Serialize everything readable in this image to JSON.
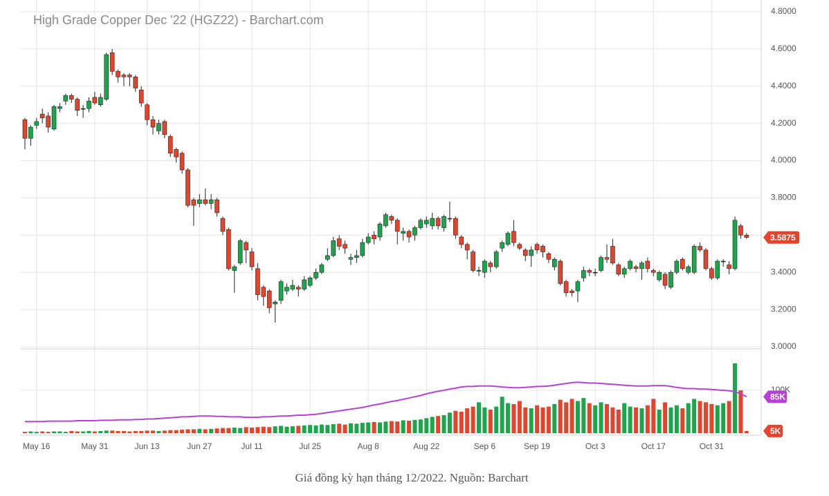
{
  "chart_data": [
    {
      "type": "candlestick",
      "title": "High Grade Copper Dec '22 (HGZ22) - Barchart.com",
      "categories": [
        null,
        null,
        "May 16",
        null,
        null,
        null,
        null,
        null,
        null,
        null,
        null,
        null,
        "May 31",
        null,
        null,
        null,
        null,
        null,
        null,
        null,
        null,
        "Jun 13",
        null,
        null,
        null,
        null,
        null,
        null,
        null,
        null,
        "Jun 27",
        null,
        null,
        null,
        null,
        null,
        null,
        null,
        null,
        "Jul 11",
        null,
        null,
        null,
        null,
        null,
        null,
        null,
        null,
        null,
        "Jul 25",
        null,
        null,
        null,
        null,
        null,
        null,
        null,
        null,
        null,
        "Aug 8",
        null,
        null,
        null,
        null,
        null,
        null,
        null,
        null,
        null,
        "Aug 22",
        null,
        null,
        null,
        null,
        null,
        null,
        null,
        null,
        null,
        "Sep 6",
        null,
        null,
        null,
        null,
        null,
        null,
        null,
        null,
        "Sep 19",
        null,
        null,
        null,
        null,
        null,
        null,
        null,
        null,
        null,
        "Oct 3",
        null,
        null,
        null,
        null,
        null,
        null,
        null,
        null,
        null,
        "Oct 17",
        null,
        null,
        null,
        null,
        null,
        null,
        null,
        null,
        null,
        "Oct 31",
        null,
        null,
        null,
        null,
        null,
        null
      ],
      "open": [
        4.22,
        4.12,
        4.19,
        4.25,
        4.24,
        4.17,
        4.28,
        4.32,
        4.35,
        4.33,
        4.28,
        4.28,
        4.34,
        4.3,
        4.33,
        4.58,
        4.48,
        4.46,
        4.46,
        4.45,
        4.38,
        4.3,
        4.22,
        4.16,
        4.21,
        4.13,
        4.06,
        4.04,
        3.95,
        3.79,
        3.77,
        3.79,
        3.77,
        3.79,
        3.69,
        3.63,
        3.41,
        3.45,
        3.56,
        3.51,
        3.42,
        3.32,
        3.3,
        3.23,
        3.25,
        3.3,
        3.31,
        3.32,
        3.31,
        3.33,
        3.37,
        3.4,
        3.47,
        3.49,
        3.58,
        3.55,
        3.47,
        3.48,
        3.49,
        3.56,
        3.6,
        3.59,
        3.65,
        3.7,
        3.68,
        3.61,
        3.62,
        3.6,
        3.64,
        3.66,
        3.65,
        3.69,
        3.64,
        3.69,
        3.69,
        3.59,
        3.55,
        3.51,
        3.41,
        3.4,
        3.45,
        3.43,
        3.53,
        3.55,
        3.62,
        3.55,
        3.52,
        3.49,
        3.55,
        3.54,
        3.5,
        3.43,
        3.46,
        3.35,
        3.3,
        3.3,
        3.37,
        3.41,
        3.4,
        3.41,
        3.48,
        3.54,
        3.44,
        3.39,
        3.42,
        3.43,
        3.42,
        3.46,
        3.41,
        3.36,
        3.39,
        3.32,
        3.4,
        3.47,
        3.4,
        3.4,
        3.54,
        3.52,
        3.42,
        3.37,
        3.46,
        3.44,
        3.42,
        3.65,
        3.6
      ],
      "high": [
        4.23,
        4.19,
        4.23,
        4.28,
        4.26,
        4.3,
        4.31,
        4.36,
        4.36,
        4.34,
        4.3,
        4.34,
        4.37,
        4.36,
        4.58,
        4.6,
        4.49,
        4.47,
        4.47,
        4.46,
        4.4,
        4.31,
        4.24,
        4.22,
        4.22,
        4.14,
        4.07,
        4.05,
        3.96,
        3.8,
        3.82,
        3.85,
        3.82,
        3.8,
        3.7,
        3.64,
        3.44,
        3.58,
        3.57,
        3.53,
        3.45,
        3.33,
        3.31,
        3.25,
        3.36,
        3.34,
        3.36,
        3.33,
        3.38,
        3.38,
        3.42,
        3.45,
        3.53,
        3.59,
        3.6,
        3.57,
        3.5,
        3.52,
        3.58,
        3.61,
        3.62,
        3.67,
        3.72,
        3.71,
        3.69,
        3.64,
        3.63,
        3.65,
        3.69,
        3.7,
        3.72,
        3.7,
        3.71,
        3.78,
        3.7,
        3.6,
        3.56,
        3.52,
        3.43,
        3.47,
        3.46,
        3.52,
        3.57,
        3.62,
        3.68,
        3.56,
        3.53,
        3.54,
        3.56,
        3.55,
        3.51,
        3.48,
        3.47,
        3.36,
        3.31,
        3.36,
        3.43,
        3.42,
        3.42,
        3.49,
        3.55,
        3.58,
        3.45,
        3.43,
        3.47,
        3.44,
        3.46,
        3.48,
        3.42,
        3.41,
        3.4,
        3.41,
        3.47,
        3.48,
        3.44,
        3.55,
        3.56,
        3.53,
        3.43,
        3.47,
        3.47,
        3.46,
        3.7,
        3.66,
        3.61
      ],
      "low": [
        4.06,
        4.08,
        4.17,
        4.2,
        4.15,
        4.16,
        4.26,
        4.3,
        4.31,
        4.24,
        4.23,
        4.26,
        4.3,
        4.29,
        4.32,
        4.46,
        4.42,
        4.4,
        4.4,
        4.37,
        4.29,
        4.19,
        4.14,
        4.14,
        4.12,
        4.02,
        3.99,
        3.93,
        3.75,
        3.65,
        3.75,
        3.76,
        3.74,
        3.7,
        3.6,
        3.41,
        3.29,
        3.44,
        3.45,
        3.41,
        3.25,
        3.22,
        3.18,
        3.13,
        3.23,
        3.28,
        3.3,
        3.27,
        3.3,
        3.32,
        3.36,
        3.39,
        3.46,
        3.48,
        3.52,
        3.5,
        3.44,
        3.45,
        3.48,
        3.55,
        3.55,
        3.57,
        3.64,
        3.66,
        3.55,
        3.57,
        3.56,
        3.57,
        3.63,
        3.64,
        3.63,
        3.63,
        3.62,
        3.67,
        3.58,
        3.53,
        3.47,
        3.4,
        3.38,
        3.37,
        3.4,
        3.42,
        3.51,
        3.54,
        3.54,
        3.52,
        3.46,
        3.43,
        3.5,
        3.48,
        3.45,
        3.41,
        3.33,
        3.27,
        3.27,
        3.24,
        3.35,
        3.38,
        3.38,
        3.4,
        3.45,
        3.44,
        3.38,
        3.37,
        3.41,
        3.4,
        3.36,
        3.4,
        3.38,
        3.35,
        3.31,
        3.31,
        3.39,
        3.41,
        3.39,
        3.39,
        3.51,
        3.41,
        3.36,
        3.36,
        3.43,
        3.39,
        3.41,
        3.58,
        3.58
      ],
      "close": [
        4.12,
        4.18,
        4.21,
        4.23,
        4.18,
        4.29,
        4.29,
        4.35,
        4.33,
        4.27,
        4.28,
        4.32,
        4.31,
        4.34,
        4.57,
        4.48,
        4.45,
        4.45,
        4.45,
        4.39,
        4.31,
        4.22,
        4.18,
        4.2,
        4.14,
        4.04,
        4.02,
        3.95,
        3.76,
        3.76,
        3.79,
        3.77,
        3.79,
        3.72,
        3.62,
        3.42,
        3.43,
        3.57,
        3.52,
        3.43,
        3.28,
        3.27,
        3.21,
        3.24,
        3.35,
        3.32,
        3.33,
        3.31,
        3.36,
        3.37,
        3.4,
        3.44,
        3.49,
        3.57,
        3.54,
        3.53,
        3.48,
        3.49,
        3.56,
        3.59,
        3.58,
        3.66,
        3.71,
        3.68,
        3.62,
        3.62,
        3.59,
        3.64,
        3.68,
        3.68,
        3.69,
        3.65,
        3.7,
        3.69,
        3.6,
        3.55,
        3.52,
        3.41,
        3.41,
        3.46,
        3.43,
        3.51,
        3.56,
        3.61,
        3.56,
        3.53,
        3.49,
        3.52,
        3.52,
        3.51,
        3.47,
        3.47,
        3.34,
        3.29,
        3.29,
        3.35,
        3.41,
        3.4,
        3.4,
        3.48,
        3.47,
        3.45,
        3.39,
        3.42,
        3.46,
        3.42,
        3.45,
        3.42,
        3.4,
        3.4,
        3.33,
        3.4,
        3.46,
        3.42,
        3.43,
        3.54,
        3.52,
        3.42,
        3.37,
        3.46,
        3.46,
        3.42,
        3.68,
        3.6,
        3.5875
      ],
      "last_label": "3.5875",
      "up_color": "#1aa64a",
      "down_color": "#e4442b",
      "badge_color": "#e4442b",
      "ylim": [
        3.0,
        4.8
      ],
      "yticks": [
        {
          "value": 3.0,
          "label": "3.0000"
        },
        {
          "value": 3.2,
          "label": "3.2000"
        },
        {
          "value": 3.4,
          "label": "3.4000"
        },
        {
          "value": 3.6,
          "label": "3.6000"
        },
        {
          "value": 3.8,
          "label": "3.8000"
        },
        {
          "value": 4.0,
          "label": "4.0000"
        },
        {
          "value": 4.2,
          "label": "4.2000"
        },
        {
          "value": 4.4,
          "label": "4.4000"
        },
        {
          "value": 4.6,
          "label": "4.6000"
        },
        {
          "value": 4.8,
          "label": "4.8000"
        }
      ],
      "grid": true
    },
    {
      "type": "bar",
      "values": [
        3,
        4,
        3,
        4,
        3,
        4,
        4,
        3,
        5,
        4,
        4,
        5,
        4,
        5,
        6,
        6,
        5,
        5,
        4,
        5,
        5,
        6,
        6,
        5,
        6,
        7,
        7,
        8,
        9,
        9,
        10,
        9,
        10,
        11,
        12,
        12,
        13,
        12,
        14,
        13,
        14,
        15,
        14,
        16,
        17,
        15,
        16,
        17,
        18,
        19,
        18,
        20,
        19,
        21,
        22,
        20,
        23,
        22,
        24,
        25,
        26,
        25,
        27,
        28,
        27,
        30,
        29,
        31,
        32,
        35,
        38,
        40,
        42,
        48,
        52,
        50,
        58,
        62,
        72,
        60,
        55,
        62,
        85,
        70,
        68,
        75,
        60,
        58,
        65,
        60,
        62,
        68,
        78,
        72,
        80,
        75,
        82,
        70,
        65,
        72,
        68,
        60,
        55,
        70,
        62,
        60,
        58,
        65,
        80,
        55,
        72,
        60,
        65,
        58,
        70,
        80,
        75,
        72,
        68,
        65,
        70,
        75,
        163,
        100,
        5
      ],
      "last_label": "5K",
      "average": {
        "color": "#b640d8",
        "last_label": "85K",
        "values": [
          27,
          27,
          27,
          27,
          28,
          28,
          28,
          28,
          28,
          29,
          29,
          29,
          29,
          30,
          30,
          30,
          31,
          31,
          31,
          32,
          32,
          33,
          33,
          34,
          35,
          36,
          37,
          38,
          38,
          39,
          40,
          40,
          40,
          39,
          39,
          38,
          38,
          38,
          37,
          37,
          37,
          38,
          38,
          39,
          40,
          40,
          41,
          42,
          42,
          43,
          44,
          46,
          48,
          50,
          52,
          54,
          56,
          58,
          60,
          63,
          66,
          68,
          71,
          74,
          76,
          79,
          82,
          85,
          88,
          92,
          95,
          98,
          100,
          103,
          105,
          108,
          109,
          109,
          110,
          110,
          110,
          109,
          108,
          107,
          106,
          106,
          107,
          108,
          109,
          109,
          110,
          112,
          114,
          116,
          118,
          119,
          118,
          117,
          117,
          116,
          115,
          114,
          113,
          112,
          111,
          110,
          110,
          110,
          111,
          111,
          111,
          109,
          107,
          105,
          104,
          104,
          103,
          103,
          102,
          101,
          100,
          99,
          97,
          92,
          85
        ]
      },
      "ylim": [
        0,
        192
      ],
      "yticks": [
        {
          "value": 100,
          "label": "100K"
        }
      ]
    }
  ],
  "caption": "Giá đồng kỳ hạn tháng 12/2022. Nguồn: Barchart"
}
